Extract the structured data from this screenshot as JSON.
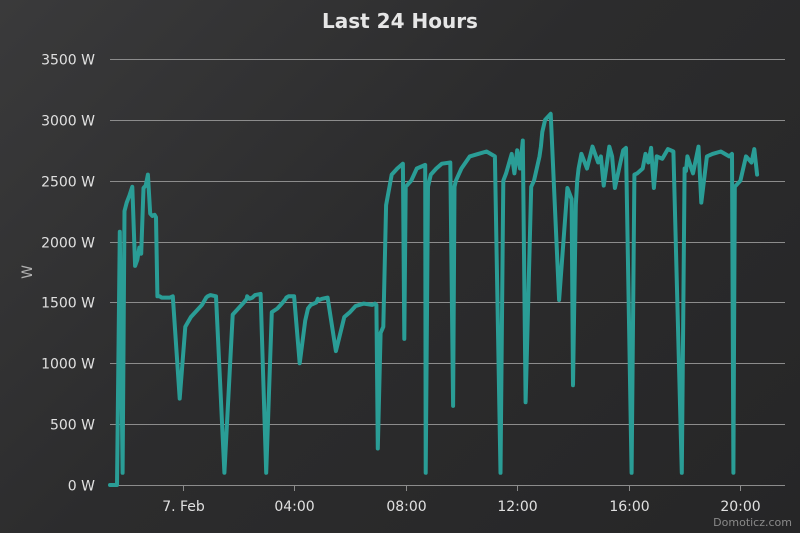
{
  "chart_data": {
    "type": "line",
    "title": "Last 24 Hours",
    "ylabel": "W",
    "xlabel": "",
    "ylim": [
      0,
      3500
    ],
    "yticks": [
      0,
      500,
      1000,
      1500,
      2000,
      2500,
      3000,
      3500
    ],
    "ytick_labels": [
      "0 W",
      "500 W",
      "1000 W",
      "1500 W",
      "2000 W",
      "2500 W",
      "3000 W",
      "3500 W"
    ],
    "xlim": [
      -2.6,
      21.6
    ],
    "xticks": [
      0,
      4,
      8,
      12,
      16,
      20
    ],
    "xtick_labels": [
      "7. Feb",
      "04:00",
      "08:00",
      "12:00",
      "16:00",
      "20:00"
    ],
    "grid": true,
    "credit": "Domoticz.com",
    "colors": {
      "series": "#2a9d96",
      "grid": "#8c8c8c"
    },
    "series": [
      {
        "x": [
          -2.6,
          -2.35,
          -2.25,
          -2.15,
          -2.08,
          -2.0,
          -1.9,
          -1.8,
          -1.7,
          -1.62,
          -1.55,
          -1.48,
          -1.4,
          -1.32,
          -1.24,
          -1.16,
          -1.08,
          -1.0,
          -0.95,
          -0.9,
          -0.82,
          -0.75,
          -0.65,
          -0.55,
          -0.45,
          -0.35,
          -0.1,
          0.1,
          0.3,
          0.5,
          0.7,
          0.85,
          0.9,
          1.0,
          1.2,
          1.5,
          1.8,
          2.0,
          2.2,
          2.3,
          2.32,
          2.4,
          2.5,
          2.6,
          2.8,
          3.0,
          3.2,
          3.4,
          3.6,
          3.7,
          3.72,
          3.8,
          4.0,
          4.2,
          4.4,
          4.5,
          4.6,
          4.8,
          4.85,
          4.9,
          5.0,
          5.2,
          5.5,
          5.8,
          6.0,
          6.2,
          6.5,
          6.8,
          6.9,
          6.95,
          7.0,
          7.1,
          7.2,
          7.3,
          7.5,
          7.7,
          7.85,
          7.9,
          7.95,
          8.0,
          8.2,
          8.4,
          8.6,
          8.7,
          8.72,
          8.8,
          8.9,
          9.1,
          9.3,
          9.6,
          9.7,
          9.75,
          9.8,
          10.0,
          10.3,
          10.6,
          10.9,
          11.2,
          11.4,
          11.5,
          11.6,
          11.8,
          11.9,
          12.0,
          12.1,
          12.2,
          12.3,
          12.5,
          12.6,
          12.8,
          12.85,
          12.9,
          13.0,
          13.2,
          13.5,
          13.8,
          13.95,
          14.0,
          14.1,
          14.15,
          14.2,
          14.3,
          14.5,
          14.7,
          14.9,
          15.0,
          15.1,
          15.3,
          15.4,
          15.5,
          15.7,
          15.8,
          15.9,
          16.1,
          16.2,
          16.3,
          16.5,
          16.6,
          16.7,
          16.8,
          16.9,
          17.0,
          17.2,
          17.4,
          17.6,
          17.9,
          18.0,
          18.05,
          18.1,
          18.3,
          18.5,
          18.6,
          18.8,
          19.0,
          19.3,
          19.6,
          19.7,
          19.75,
          19.8,
          20.0,
          20.2,
          20.4,
          20.5,
          20.6
        ],
        "y": [
          0,
          0,
          2080,
          100,
          2250,
          2320,
          2380,
          2450,
          1800,
          1850,
          1950,
          1900,
          2440,
          2460,
          2550,
          2230,
          2210,
          2220,
          2200,
          1550,
          1550,
          1540,
          1540,
          1540,
          1540,
          1550,
          710,
          1300,
          1380,
          1430,
          1480,
          1540,
          1550,
          1560,
          1550,
          100,
          1400,
          1450,
          1500,
          1530,
          1550,
          1530,
          1540,
          1560,
          1570,
          100,
          1420,
          1450,
          1500,
          1530,
          1540,
          1550,
          1550,
          1000,
          1350,
          1450,
          1480,
          1500,
          1530,
          1520,
          1530,
          1540,
          1100,
          1380,
          1420,
          1470,
          1490,
          1480,
          1490,
          1480,
          300,
          1250,
          1300,
          2300,
          2550,
          2600,
          2630,
          2640,
          1200,
          2450,
          2500,
          2600,
          2620,
          2630,
          100,
          2450,
          2550,
          2600,
          2640,
          2650,
          650,
          2450,
          2500,
          2600,
          2700,
          2720,
          2740,
          2700,
          100,
          2500,
          2560,
          2720,
          2560,
          2750,
          2600,
          2830,
          680,
          2450,
          2500,
          2700,
          2780,
          2900,
          3000,
          3050,
          1520,
          2440,
          2350,
          820,
          2300,
          2500,
          2600,
          2720,
          2600,
          2780,
          2650,
          2700,
          2460,
          2780,
          2700,
          2440,
          2650,
          2750,
          2770,
          100,
          2550,
          2560,
          2600,
          2720,
          2650,
          2770,
          2440,
          2700,
          2680,
          2760,
          2740,
          100,
          2600,
          2580,
          2700,
          2560,
          2780,
          2320,
          2700,
          2720,
          2740,
          2700,
          2720,
          100,
          2450,
          2500,
          2700,
          2650,
          2760,
          2550
        ]
      }
    ]
  }
}
